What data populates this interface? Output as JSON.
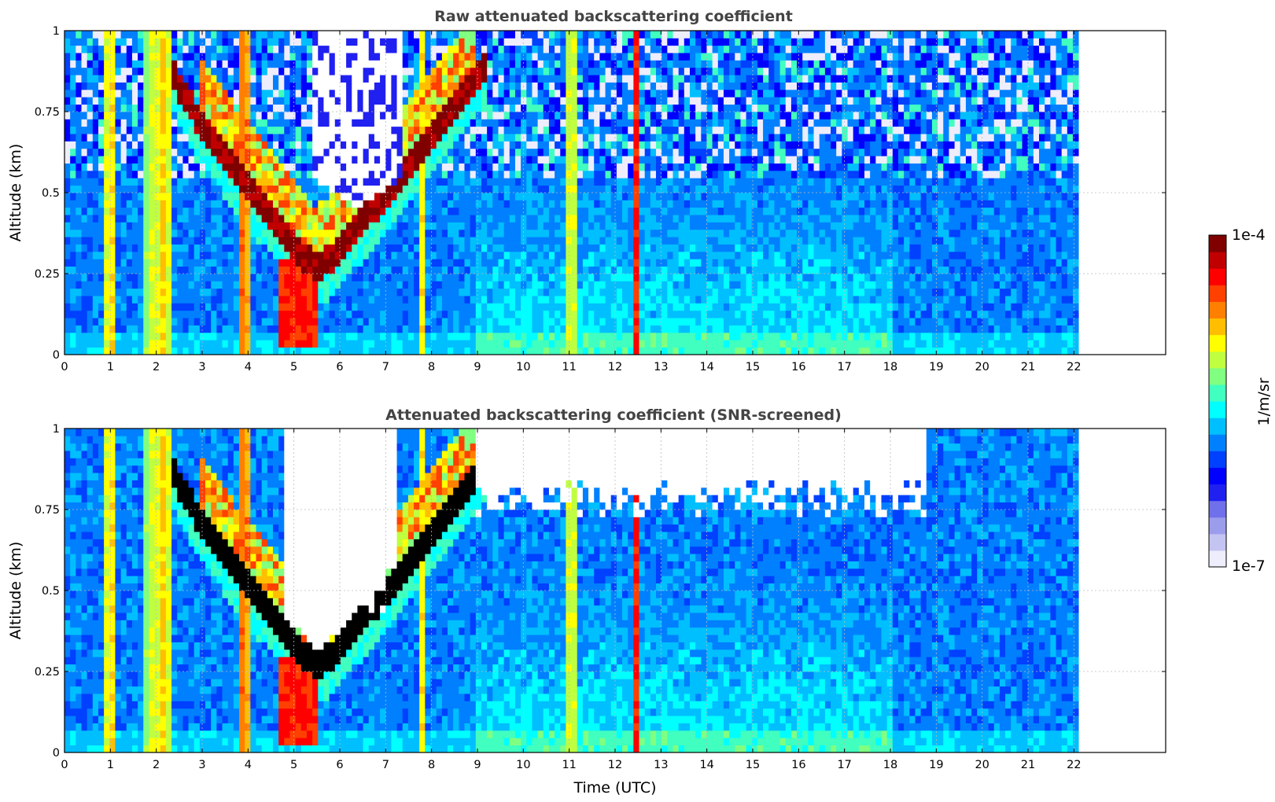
{
  "chart_data": [
    {
      "type": "heatmap",
      "title": "Raw attenuated backscattering coefficient",
      "xlabel": "",
      "ylabel": "Altitude (km)",
      "xlim": [
        0,
        24
      ],
      "ylim": [
        0,
        1
      ],
      "data_xmax": 22.1,
      "x_ticks": [
        "0",
        "1",
        "2",
        "3",
        "4",
        "5",
        "6",
        "7",
        "8",
        "9",
        "10",
        "11",
        "12",
        "13",
        "14",
        "15",
        "16",
        "17",
        "18",
        "19",
        "20",
        "21",
        "22"
      ],
      "y_ticks": [
        "0",
        "0.25",
        "0.5",
        "0.75",
        "1"
      ],
      "grid": true,
      "features": {
        "aerosol_bands": [
          {
            "center": 1.0,
            "width": 0.2,
            "level": 0.72
          },
          {
            "center": 1.9,
            "width": 0.35,
            "level": 0.62
          },
          {
            "center": 2.15,
            "width": 0.45,
            "level": 0.68
          },
          {
            "center": 3.9,
            "width": 0.3,
            "level": 0.78
          },
          {
            "center": 7.8,
            "width": 0.15,
            "level": 0.66
          },
          {
            "center": 11.05,
            "width": 0.25,
            "level": 0.66
          },
          {
            "center": 12.45,
            "width": 0.1,
            "level": 0.86
          }
        ],
        "cloud_layer": {
          "x_start": 2.3,
          "x_end": 9.2,
          "alt_top": 0.9,
          "alt_min": 0.26,
          "x_min": 5.5
        },
        "cloud_bottom": {
          "x_start": 4.7,
          "x_end": 5.5,
          "alt": 0.02
        },
        "clear_gap": {
          "x_center": 6.4,
          "alt_low": 0.45,
          "alt_high": 1.0
        }
      }
    },
    {
      "type": "heatmap",
      "title": "Attenuated backscattering coefficient (SNR-screened)",
      "xlabel": "Time (UTC)",
      "ylabel": "Altitude (km)",
      "xlim": [
        0,
        24
      ],
      "ylim": [
        0,
        1
      ],
      "data_xmax": 22.1,
      "x_ticks": [
        "0",
        "1",
        "2",
        "3",
        "4",
        "5",
        "6",
        "7",
        "8",
        "9",
        "10",
        "11",
        "12",
        "13",
        "14",
        "15",
        "16",
        "17",
        "18",
        "19",
        "20",
        "21",
        "22"
      ],
      "y_ticks": [
        "0",
        "0.25",
        "0.5",
        "0.75",
        "1"
      ],
      "grid": true,
      "screened": true,
      "features": {
        "screened_regions": [
          {
            "x_start": 5.0,
            "x_end": 7.0,
            "alt_bottom": 0.4
          },
          {
            "x_start": 9.0,
            "x_end": 18.8,
            "alt_bottom": 0.72
          }
        ]
      }
    }
  ],
  "colorbar": {
    "label": "1/m/sr",
    "max_label": "1e-4",
    "min_label": "1e-7",
    "colors": [
      "#ededfb",
      "#c4c4f2",
      "#9c9cec",
      "#7070ea",
      "#2020f0",
      "#0000ff",
      "#0040ff",
      "#0080ff",
      "#00bfff",
      "#00ffff",
      "#40ffbf",
      "#80ff80",
      "#bfff40",
      "#ffff00",
      "#ffbf00",
      "#ff8000",
      "#ff4000",
      "#ff0000",
      "#c00000",
      "#800000"
    ],
    "saturated_color": "#000000",
    "screened_color": "#ffffff"
  }
}
